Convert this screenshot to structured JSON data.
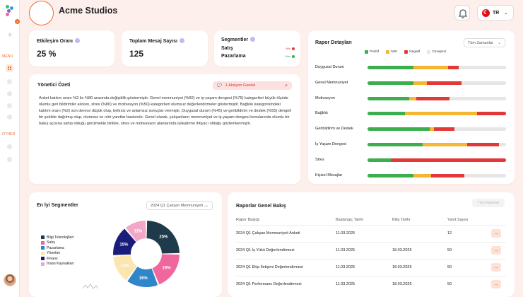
{
  "header": {
    "org_name": "Acme Studios",
    "lang": "TR"
  },
  "sidebar": {
    "badge": "2",
    "menu_label": "MENU",
    "other_label": "OTHER"
  },
  "stats": {
    "participation": {
      "title": "Etkileşim Oranı",
      "value": "25 %"
    },
    "messages": {
      "title": "Toplam Mesaj Sayısı",
      "value": "125"
    },
    "segments": {
      "title": "Segmentler",
      "rows": [
        {
          "label": "Satış",
          "tag": "Min",
          "color": "#e23838"
        },
        {
          "label": "Pazarlama",
          "tag": "Max",
          "color": "#3cae4e"
        }
      ]
    }
  },
  "summary": {
    "title": "Yönetici Özeti",
    "action": "1 Aksiyon Gerekli",
    "text": "Anket katılım oranı %2 ile %80 arasında değişiklik göstermiştir. Genel memnuniyet (%60) ve iş-yaşam dengesi (%75) kategorileri büyük ölçüde olumlu geri bildirimler alırken, stres (%80) ve motivasyon (%50) kategorileri olumsuz değerlendirmeler göstermiştir. Bağlılık kategorisindeki katılım oranı (%2) son derece düşük olup, belirsiz ve anlamsız sonuçlar vermiştir. Duygusal durum (%45) ve geribildirim ve destek (%55) dengeli bir şekilde dağılmış olup, olumsuz ve nötr yanıtlar baskındır. Genel olarak, çalışanların memnuniyet ve iş-yaşam dengesi konularında olumlu bir bakış açısına sahip olduğu görülmekle birlikte, stres ve motivasyon alanlarında iyileştirme ihtiyacı olduğu gözlemlenmiştir."
  },
  "details": {
    "title": "Rapor Detayları",
    "filter": "Tüm Zamanlar",
    "legend": [
      {
        "label": "Pozitif",
        "color": "#3cae4e"
      },
      {
        "label": "Nötr",
        "color": "#f5b731"
      },
      {
        "label": "Negatif",
        "color": "#e23838"
      },
      {
        "label": "Cevapsız",
        "color": "#e6e6e6"
      }
    ],
    "rows": [
      {
        "label": "Duygusal Durum",
        "values": [
          33,
          25,
          8,
          34
        ]
      },
      {
        "label": "Genel Memnuniyet",
        "values": [
          33,
          10,
          25,
          32
        ]
      },
      {
        "label": "Motivasyon",
        "values": [
          30,
          5,
          24,
          41
        ]
      },
      {
        "label": "Bağlılık",
        "values": [
          27,
          52,
          21,
          0
        ]
      },
      {
        "label": "Geribildirim ve Destek",
        "values": [
          45,
          3,
          15,
          37
        ]
      },
      {
        "label": "İş Yaşam Dengesi",
        "values": [
          40,
          32,
          23,
          5
        ]
      },
      {
        "label": "Stres",
        "values": [
          17,
          0,
          83,
          0
        ]
      },
      {
        "label": "Kişisel Mesajlar",
        "values": [
          33,
          13,
          24,
          30
        ]
      }
    ]
  },
  "top_segments": {
    "title": "En İyi Segmentler",
    "filter": "2024 Q1 Çalışan Memnuniyeti...",
    "legend": [
      {
        "label": "Bilgi Teknolojileri",
        "color": "#1f3a4a"
      },
      {
        "label": "Satış",
        "color": "#f0679d"
      },
      {
        "label": "Pazarlama",
        "color": "#2f86c9"
      },
      {
        "label": "Yönetim",
        "color": "#fbe6b0"
      },
      {
        "label": "Finans",
        "color": "#1a1c7a"
      },
      {
        "label": "İnsan Kaynakları",
        "color": "#f2a7c7"
      }
    ]
  },
  "chart_data": {
    "type": "pie",
    "categories": [
      "Bilgi Teknolojileri",
      "Satış",
      "Pazarlama",
      "Yönetim",
      "Finans",
      "İnsan Kaynakları"
    ],
    "values": [
      25,
      19,
      16,
      14,
      15,
      11
    ],
    "labels": [
      "25%",
      "19%",
      "16%",
      "14%",
      "15%",
      "11%"
    ],
    "colors": [
      "#1f3a4a",
      "#f0679d",
      "#2f86c9",
      "#fbe6b0",
      "#1a1c7a",
      "#f2a7c7"
    ]
  },
  "reports": {
    "title": "Raporlar Genel Bakış",
    "button": "Tüm Raporlar",
    "columns": [
      "Rapor Başlığı",
      "Başlangıç Tarihi",
      "Bitiş Tarihi",
      "Yanıt Sayısı"
    ],
    "rows": [
      {
        "title": "2024 Q1 Çalışan Memnuniyeti Anketi",
        "start": "11.03.2025",
        "end": "",
        "count": "12"
      },
      {
        "title": "2024 Q1 İş Yükü Değerlendirmesi",
        "start": "11.03.2025",
        "end": "18.03.2025",
        "count": "50"
      },
      {
        "title": "2024 Q1 Ekip İletişimi Değerlendirmesi",
        "start": "11.03.2025",
        "end": "18.03.2025",
        "count": "50"
      },
      {
        "title": "2024 Q1 Performans Değerlendirmesi",
        "start": "11.03.2025",
        "end": "18.03.2025",
        "count": "50"
      }
    ]
  }
}
